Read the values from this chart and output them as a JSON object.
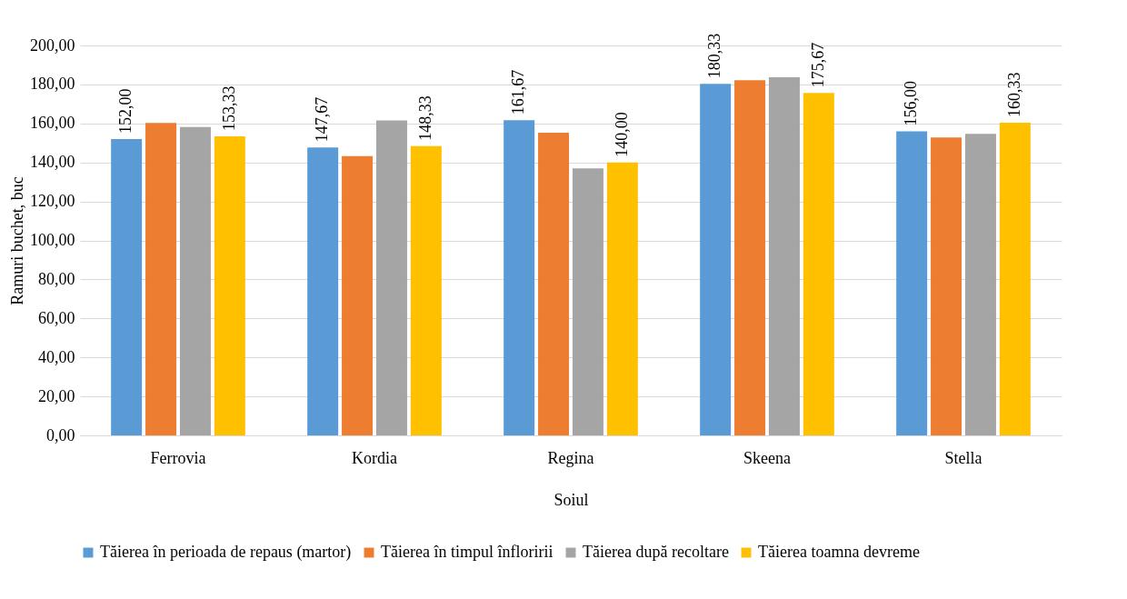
{
  "chart_data": {
    "type": "bar",
    "xlabel": "Soiul",
    "ylabel": "Ramuri buchet, buc",
    "categories": [
      "Ferrovia",
      "Kordia",
      "Regina",
      "Skeena",
      "Stella"
    ],
    "series": [
      {
        "name": "Tăierea în perioada de repaus (martor)",
        "color": "#5b9bd5",
        "values": [
          152.0,
          147.67,
          161.67,
          180.33,
          156.0
        ],
        "value_labels": [
          "152,00",
          "147,67",
          "161,67",
          "180,33",
          "156,00"
        ]
      },
      {
        "name": "Tăierea în timpul înfloririi",
        "color": "#ed7d31",
        "values": [
          160.3,
          143.2,
          155.2,
          182.2,
          152.8
        ]
      },
      {
        "name": "Tăierea după recoltare",
        "color": "#a5a5a5",
        "values": [
          158.2,
          161.5,
          137.0,
          183.7,
          154.7
        ]
      },
      {
        "name": "Tăierea toamna devreme",
        "color": "#ffc000",
        "values": [
          153.33,
          148.33,
          140.0,
          175.67,
          160.33
        ],
        "value_labels": [
          "153,33",
          "148,33",
          "140,00",
          "175,67",
          "160,33"
        ]
      }
    ],
    "ylim": [
      0,
      200
    ],
    "yticks": [
      {
        "value": 0,
        "label": "0,00"
      },
      {
        "value": 20,
        "label": "20,00"
      },
      {
        "value": 40,
        "label": "40,00"
      },
      {
        "value": 60,
        "label": "60,00"
      },
      {
        "value": 80,
        "label": "80,00"
      },
      {
        "value": 100,
        "label": "100,00"
      },
      {
        "value": 120,
        "label": "120,00"
      },
      {
        "value": 140,
        "label": "140,00"
      },
      {
        "value": 160,
        "label": "160,00"
      },
      {
        "value": 180,
        "label": "180,00"
      },
      {
        "value": 200,
        "label": "200,00"
      }
    ],
    "grid": "y",
    "legend": "bottom"
  }
}
